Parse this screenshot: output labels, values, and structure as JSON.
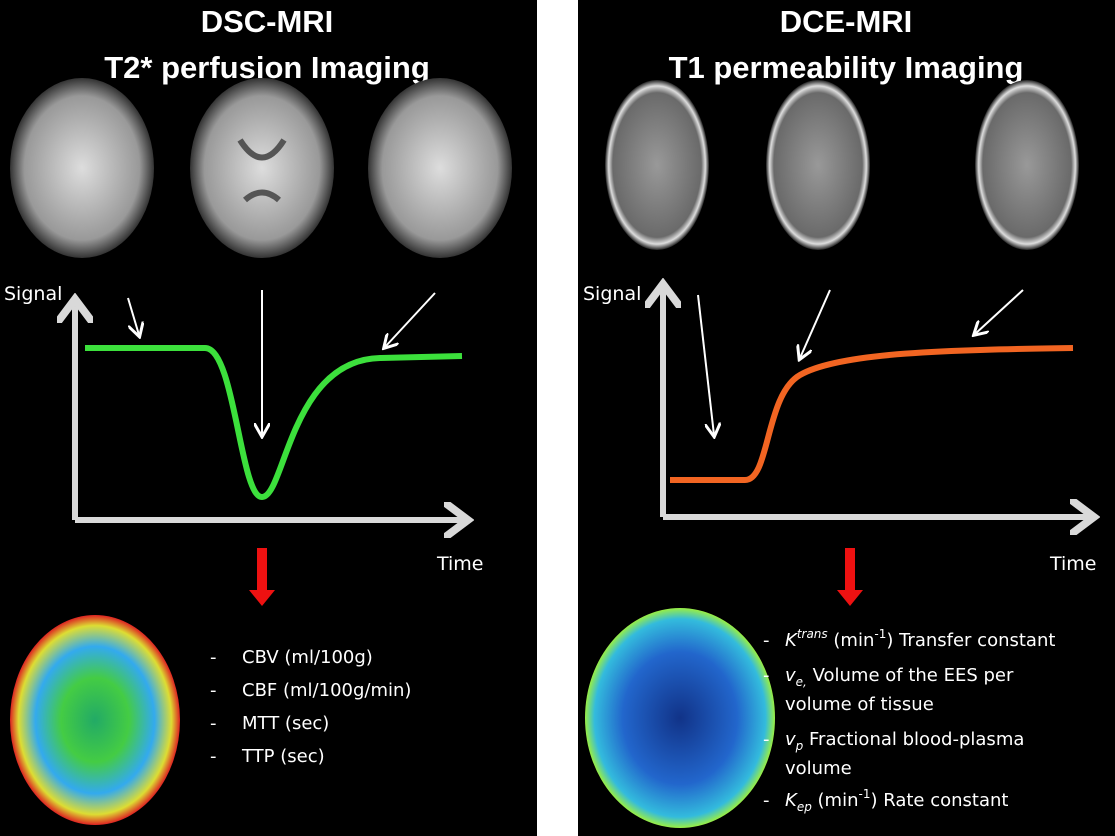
{
  "left": {
    "title": [
      "DSC-MRI",
      "T2* perfusion Imaging"
    ],
    "y_label": "Signal",
    "x_label": "Time",
    "items": [
      "CBV (ml/100g)",
      "CBF (ml/100g/min)",
      "MTT (sec)",
      "TTP (sec)"
    ]
  },
  "right": {
    "title": [
      "DCE-MRI",
      "T1 permeability Imaging"
    ],
    "y_label": "Signal",
    "x_label": "Time",
    "items": [
      [
        "K",
        "trans",
        " (min",
        "-1",
        ") Transfer constant"
      ],
      [
        "v",
        "e,",
        " Volume of the EES per",
        "volume of tissue"
      ],
      [
        "v",
        "p",
        " Fractional blood-plasma",
        "volume"
      ],
      [
        "K",
        "ep",
        " (min",
        "-1",
        ") Rate constant"
      ]
    ]
  }
}
